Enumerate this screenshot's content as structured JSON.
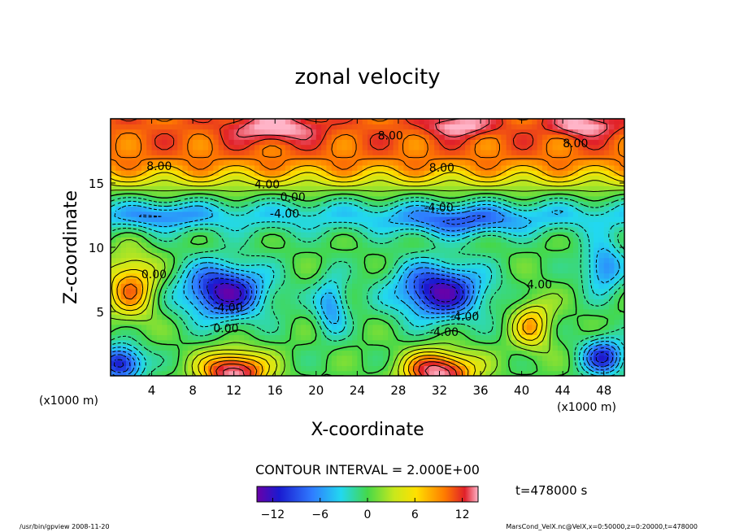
{
  "chart_data": {
    "type": "heatmap",
    "title": "zonal velocity",
    "xlabel": "X-coordinate",
    "ylabel": "Z-coordinate",
    "x_unit_left": "(x1000 m)",
    "x_unit_right": "(x1000 m)",
    "x_ticks": [
      "4",
      "8",
      "12",
      "16",
      "20",
      "24",
      "28",
      "32",
      "36",
      "40",
      "44",
      "48"
    ],
    "y_ticks": [
      "5",
      "10",
      "15"
    ],
    "xlim": [
      0,
      50
    ],
    "ylim": [
      0,
      20
    ],
    "contour_interval_label": "CONTOUR INTERVAL = 2.000E+00",
    "time_label": "t=478000 s",
    "colorbar_ticks": [
      "−12",
      "−6",
      "0",
      "6",
      "12"
    ],
    "colorbar_range": [
      -14,
      14
    ],
    "contour_labels": [
      "8.00",
      "8.00",
      "8.00",
      "8.00",
      "4.00",
      "0.00",
      "-4.00",
      "-4.00",
      "-4.00",
      "4.00",
      "-4.00",
      "0.00",
      "-4.00",
      "0.00"
    ],
    "grid": false,
    "features": [
      {
        "kind": "jet",
        "desc": "strong positive band near top",
        "z_range": [
          15,
          20
        ],
        "value_approx": 10
      },
      {
        "kind": "vortex",
        "x": 11,
        "z": 6.5,
        "value_approx": -14
      },
      {
        "kind": "vortex",
        "x": 32,
        "z": 6.5,
        "value_approx": -14
      },
      {
        "kind": "vortex",
        "x": 12,
        "z": 0.5,
        "value_approx": 14
      },
      {
        "kind": "vortex",
        "x": 32,
        "z": 0.5,
        "value_approx": 14
      }
    ]
  },
  "footer": {
    "left": "/usr/bin/gpview   2008-11-20",
    "right": "MarsCond_VelX.nc@VelX,x=0:50000,z=0:20000,t=478000"
  }
}
